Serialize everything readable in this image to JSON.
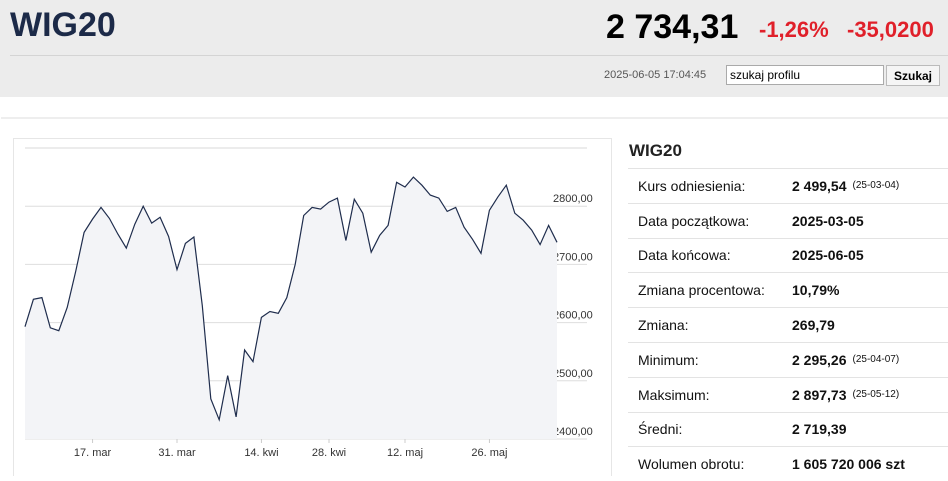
{
  "header": {
    "title": "WIG20",
    "price": "2 734,31",
    "change_pct": "-1,26%",
    "change_abs": "-35,0200",
    "timestamp": "2025-06-05 17:04:45",
    "search_placeholder": "szukaj profilu",
    "search_button": "Szukaj"
  },
  "chart_data": {
    "type": "line",
    "color": "#1f2d4d",
    "fill": "#f3f4f7",
    "grid": true,
    "categories": [
      null,
      null,
      null,
      null,
      null,
      null,
      null,
      null,
      "17. mar",
      null,
      null,
      null,
      null,
      null,
      null,
      null,
      null,
      null,
      "31. mar",
      null,
      null,
      null,
      null,
      null,
      null,
      null,
      null,
      null,
      "14. kwi",
      null,
      null,
      null,
      null,
      null,
      null,
      null,
      "28. kwi",
      null,
      null,
      null,
      null,
      null,
      null,
      null,
      null,
      "12. maj",
      null,
      null,
      null,
      null,
      null,
      null,
      null,
      null,
      null,
      "26. maj",
      null,
      null,
      null,
      null,
      null,
      null,
      null,
      null
    ],
    "values": [
      2593,
      2640,
      2643,
      2591,
      2586,
      2626,
      2688,
      2755,
      2778,
      2798,
      2779,
      2752,
      2728,
      2769,
      2800,
      2771,
      2781,
      2748,
      2691,
      2736,
      2747,
      2629,
      2469,
      2433,
      2509,
      2438,
      2553,
      2533,
      2609,
      2619,
      2616,
      2643,
      2700,
      2784,
      2798,
      2795,
      2807,
      2814,
      2741,
      2812,
      2788,
      2721,
      2750,
      2767,
      2841,
      2833,
      2850,
      2836,
      2819,
      2814,
      2791,
      2798,
      2764,
      2743,
      2719,
      2793,
      2816,
      2836,
      2788,
      2776,
      2759,
      2734,
      2767,
      2738
    ],
    "ylim": [
      2400,
      2900
    ],
    "yticks": [
      {
        "value": 2400,
        "label": "2400,00"
      },
      {
        "value": 2500,
        "label": "2500,00"
      },
      {
        "value": 2600,
        "label": "2600,00"
      },
      {
        "value": 2700,
        "label": "2700,00"
      },
      {
        "value": 2800,
        "label": "2800,00"
      }
    ]
  },
  "panel": {
    "title": "WIG20",
    "rows": [
      [
        "Kurs odniesienia:",
        "2 499,54",
        "(25-03-04)"
      ],
      [
        "Data początkowa:",
        "2025-03-05"
      ],
      [
        "Data końcowa:",
        "2025-06-05"
      ],
      [
        "Zmiana procentowa:",
        "10,79%"
      ],
      [
        "Zmiana:",
        "269,79"
      ],
      [
        "Minimum:",
        "2 295,26",
        "(25-04-07)"
      ],
      [
        "Maksimum:",
        "2 897,73",
        "(25-05-12)"
      ],
      [
        "Średni:",
        "2 719,39"
      ],
      [
        "Wolumen obrotu:",
        "1 605 720 006 szt"
      ]
    ]
  }
}
